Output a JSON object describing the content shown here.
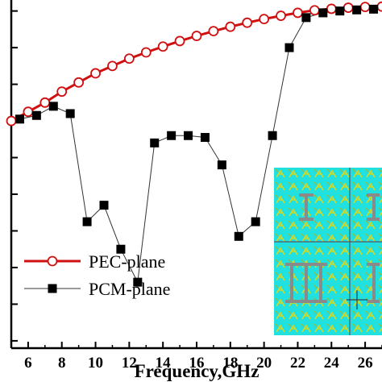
{
  "chart_data": {
    "type": "line",
    "xlabel": "Frequency,GHz",
    "ylabel": "",
    "x_ticks": [
      6,
      8,
      10,
      12,
      14,
      16,
      18,
      20,
      22,
      24,
      26
    ],
    "xlim": [
      5,
      27
    ],
    "ylim": [
      -9.2,
      0.3
    ],
    "grid": false,
    "legend_position": "bottom-left",
    "series": [
      {
        "name": "PEC-plane",
        "color": "#d01010",
        "marker": "open-circle",
        "x": [
          5,
          6,
          7,
          8,
          9,
          10,
          11,
          12,
          13,
          14,
          15,
          16,
          17,
          18,
          19,
          20,
          21,
          22,
          23,
          24,
          25,
          26,
          27
        ],
        "y": [
          -3.0,
          -2.75,
          -2.5,
          -2.2,
          -1.95,
          -1.7,
          -1.5,
          -1.3,
          -1.13,
          -0.97,
          -0.82,
          -0.68,
          -0.55,
          -0.43,
          -0.32,
          -0.22,
          -0.13,
          -0.05,
          0.02,
          0.06,
          0.09,
          0.11,
          0.12
        ]
      },
      {
        "name": "PCM-plane",
        "color": "#333333",
        "marker": "filled-square",
        "x": [
          5.5,
          6.5,
          7.5,
          8.5,
          9.5,
          10.5,
          11.5,
          12.5,
          13.5,
          14.5,
          15.5,
          16.5,
          17.5,
          18.5,
          19.5,
          20.5,
          21.5,
          22.5,
          23.5,
          24.5,
          25.5,
          26.5
        ],
        "y": [
          -2.95,
          -2.85,
          -2.6,
          -2.8,
          -5.75,
          -5.3,
          -6.5,
          -7.4,
          -3.6,
          -3.4,
          -3.4,
          -3.45,
          -4.2,
          -6.15,
          -5.75,
          -3.4,
          -1.0,
          -0.18,
          -0.05,
          0.0,
          0.03,
          0.05
        ]
      }
    ],
    "inset_image": "metasurface-unit-cell-pattern"
  },
  "colors": {
    "inset_background": "#20e0e0",
    "inset_motif": "#d8d820",
    "inset_block": "#8a8a8a"
  }
}
